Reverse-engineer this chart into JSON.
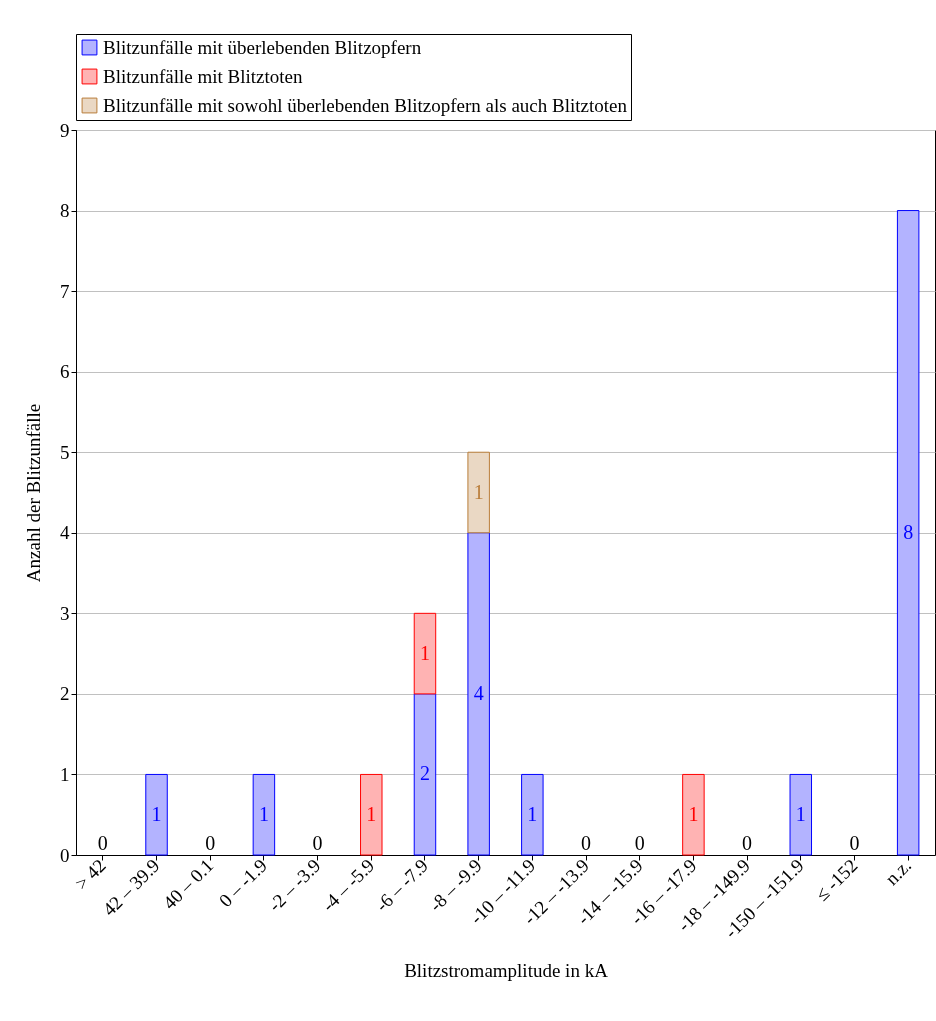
{
  "chart_data": {
    "type": "bar",
    "stacked": true,
    "xlabel": "Blitzstromamplitude in kA",
    "ylabel": "Anzahl der Blitzunfälle",
    "categories": [
      "> 42",
      "42 – 39.9",
      "40 – 0.1",
      "0 – -1.9",
      "-2 – -3.9",
      "-4 – -5.9",
      "-6 – -7.9",
      "-8 – -9.9",
      "-10 – -11.9",
      "-12 – -13.9",
      "-14 – -15.9",
      "-16 – -17.9",
      "-18 – -149.9",
      "-150 – -151.9",
      "≤ -152",
      "n.z."
    ],
    "series": [
      {
        "name": "Blitzunfälle mit überlebenden Blitzopfern",
        "color": "#b3b3ff",
        "values": [
          0,
          1,
          0,
          1,
          0,
          0,
          2,
          4,
          1,
          0,
          0,
          0,
          0,
          1,
          0,
          8
        ],
        "value_labels": [
          "0",
          "1",
          "0",
          "1",
          "0",
          null,
          "2",
          "4",
          "1",
          "0",
          "0",
          null,
          "0",
          "1",
          "0",
          "8"
        ]
      },
      {
        "name": "Blitzunfälle mit Blitztoten",
        "color": "#ffb3b3",
        "values": [
          0,
          0,
          0,
          0,
          0,
          1,
          1,
          0,
          0,
          0,
          0,
          1,
          0,
          0,
          0,
          0
        ],
        "value_labels": [
          null,
          null,
          null,
          null,
          null,
          "1",
          "1",
          null,
          null,
          null,
          null,
          "1",
          null,
          null,
          null,
          null
        ]
      },
      {
        "name": "Blitzunfälle mit sowohl überlebenden Blitzopfern als auch Blitztoten",
        "color": "#ead8c4",
        "values": [
          0,
          0,
          0,
          0,
          0,
          0,
          0,
          1,
          0,
          0,
          0,
          0,
          0,
          0,
          0,
          0
        ],
        "value_labels": [
          null,
          null,
          null,
          null,
          null,
          null,
          null,
          "1",
          null,
          null,
          null,
          null,
          null,
          null,
          null,
          null
        ]
      }
    ],
    "ylim": [
      0,
      9
    ],
    "yticks": [
      0,
      1,
      2,
      3,
      4,
      5,
      6,
      7,
      8,
      9
    ],
    "grid": "y",
    "legend": "top"
  }
}
